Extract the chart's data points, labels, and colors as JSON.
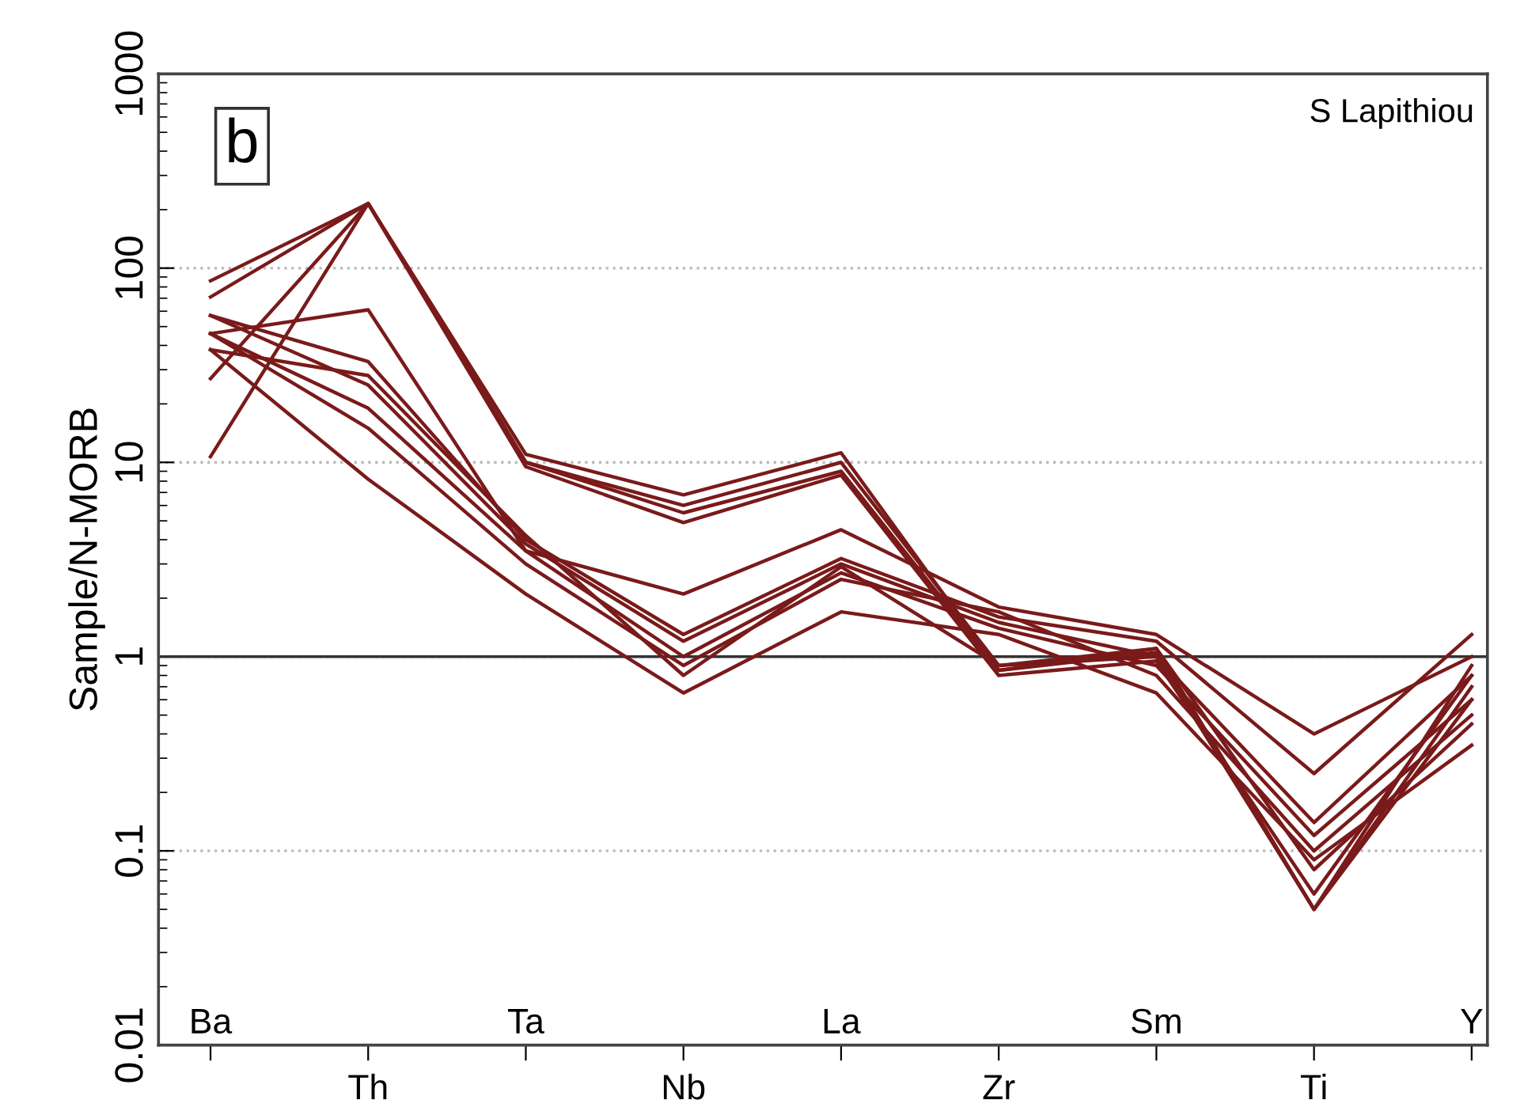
{
  "chart_data": {
    "type": "line",
    "ylabel": "Sample/N-MORB",
    "log": true,
    "categories": [
      "Ba",
      "Th",
      "Ta",
      "Nb",
      "La",
      "Zr",
      "Sm",
      "Ti",
      "Y"
    ],
    "ylim": [
      0.01,
      1000
    ],
    "yticks": [
      0.01,
      0.1,
      1,
      10,
      100,
      1000
    ],
    "grid": "y",
    "legend": false,
    "marker": "none",
    "line_style": "solid",
    "ref_lines": [
      {
        "axis": "y",
        "value": 1,
        "color": "#333333",
        "line_style": "solid"
      }
    ],
    "annotations": [
      "b",
      "S Lapithiou"
    ],
    "series": [
      {
        "color": "#7a1a1a",
        "values": [
          86,
          215,
          11,
          6.8,
          11.2,
          0.85,
          1.1,
          0.05,
          0.6
        ]
      },
      {
        "color": "#7a1a1a",
        "values": [
          71,
          215,
          10,
          6,
          10,
          0.9,
          1.0,
          0.05,
          0.7
        ]
      },
      {
        "color": "#7a1a1a",
        "values": [
          27,
          215,
          9.5,
          4.9,
          8.6,
          0.8,
          0.95,
          0.06,
          0.8
        ]
      },
      {
        "color": "#7a1a1a",
        "values": [
          10.7,
          215,
          10,
          5.5,
          9,
          0.85,
          1.05,
          0.05,
          0.9
        ]
      },
      {
        "color": "#7a1a1a",
        "values": [
          46,
          61,
          3.5,
          2.1,
          4.5,
          1.8,
          1.3,
          0.4,
          1.0
        ]
      },
      {
        "color": "#7a1a1a",
        "values": [
          57,
          33,
          4,
          1.3,
          3.2,
          1.6,
          1.2,
          0.25,
          1.3
        ]
      },
      {
        "color": "#7a1a1a",
        "values": [
          57,
          25,
          3.8,
          1.2,
          3.0,
          1.5,
          1.0,
          0.14,
          0.8
        ]
      },
      {
        "color": "#7a1a1a",
        "values": [
          46,
          19,
          3.5,
          1.0,
          2.7,
          1.4,
          0.9,
          0.12,
          0.6
        ]
      },
      {
        "color": "#7a1a1a",
        "values": [
          46,
          15,
          3,
          0.9,
          2.5,
          1.7,
          0.8,
          0.1,
          0.5
        ]
      },
      {
        "color": "#7a1a1a",
        "values": [
          38,
          8.2,
          2.1,
          0.65,
          1.7,
          1.3,
          0.65,
          0.09,
          0.35
        ]
      },
      {
        "color": "#7a1a1a",
        "values": [
          38,
          28,
          4.2,
          0.8,
          2.9,
          0.9,
          1.1,
          0.08,
          0.45
        ]
      }
    ]
  }
}
